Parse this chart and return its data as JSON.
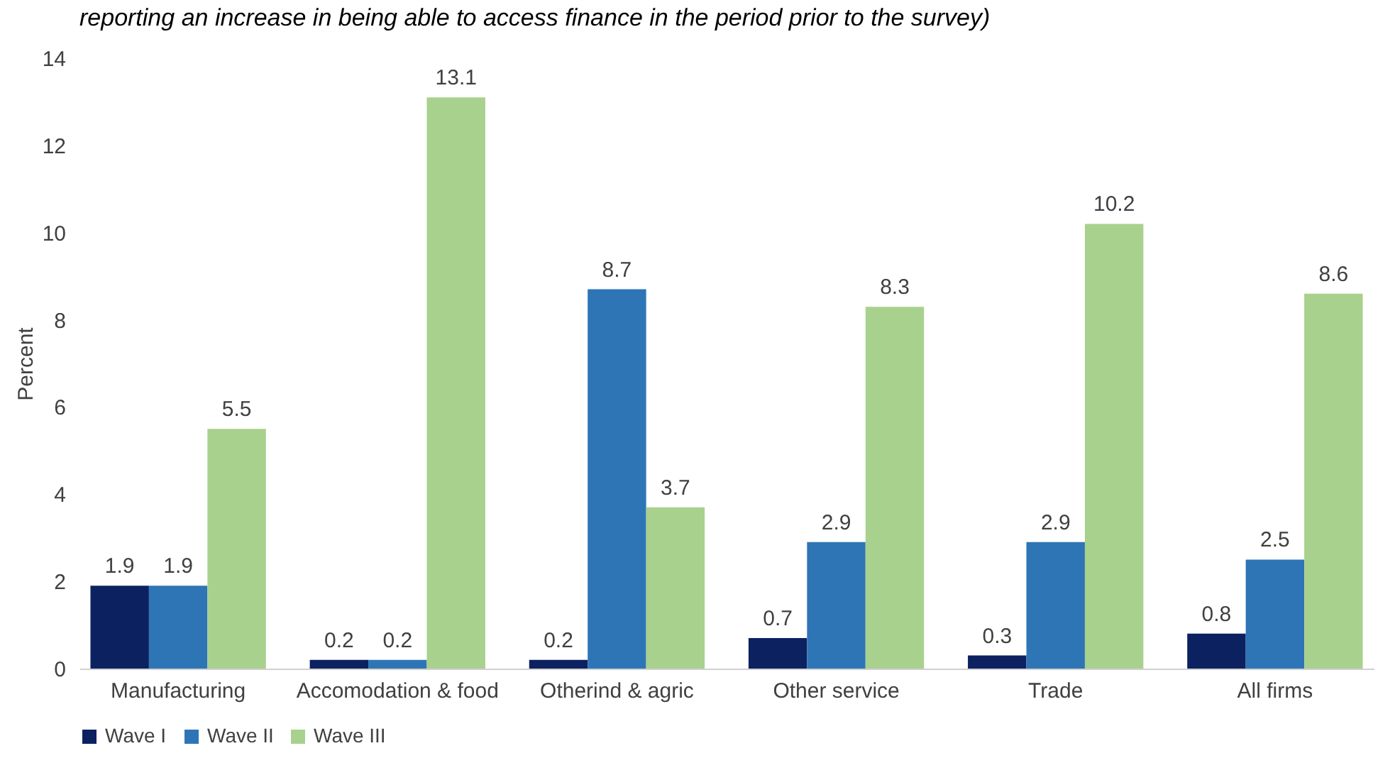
{
  "chart_data": {
    "type": "bar",
    "title": "reporting an increase in being able to access finance in the period prior to the survey)",
    "ylabel": "Percent",
    "categories": [
      "Manufacturing",
      "Accomodation & food",
      "Otherind & agric",
      "Other service",
      "Trade",
      "All firms"
    ],
    "series": [
      {
        "name": "Wave I",
        "color": "#0b2160",
        "values": [
          1.9,
          0.2,
          0.2,
          0.7,
          0.3,
          0.8
        ]
      },
      {
        "name": "Wave II",
        "color": "#2e75b6",
        "values": [
          1.9,
          0.2,
          8.7,
          2.9,
          2.9,
          2.5
        ]
      },
      {
        "name": "Wave III",
        "color": "#a9d18e",
        "values": [
          5.5,
          13.1,
          3.7,
          8.3,
          10.2,
          8.6
        ]
      }
    ],
    "ylim": [
      0,
      14
    ],
    "yticks": [
      0,
      2,
      4,
      6,
      8,
      10,
      12,
      14
    ],
    "grid": false,
    "legend": "bottom",
    "data_labels": true
  }
}
